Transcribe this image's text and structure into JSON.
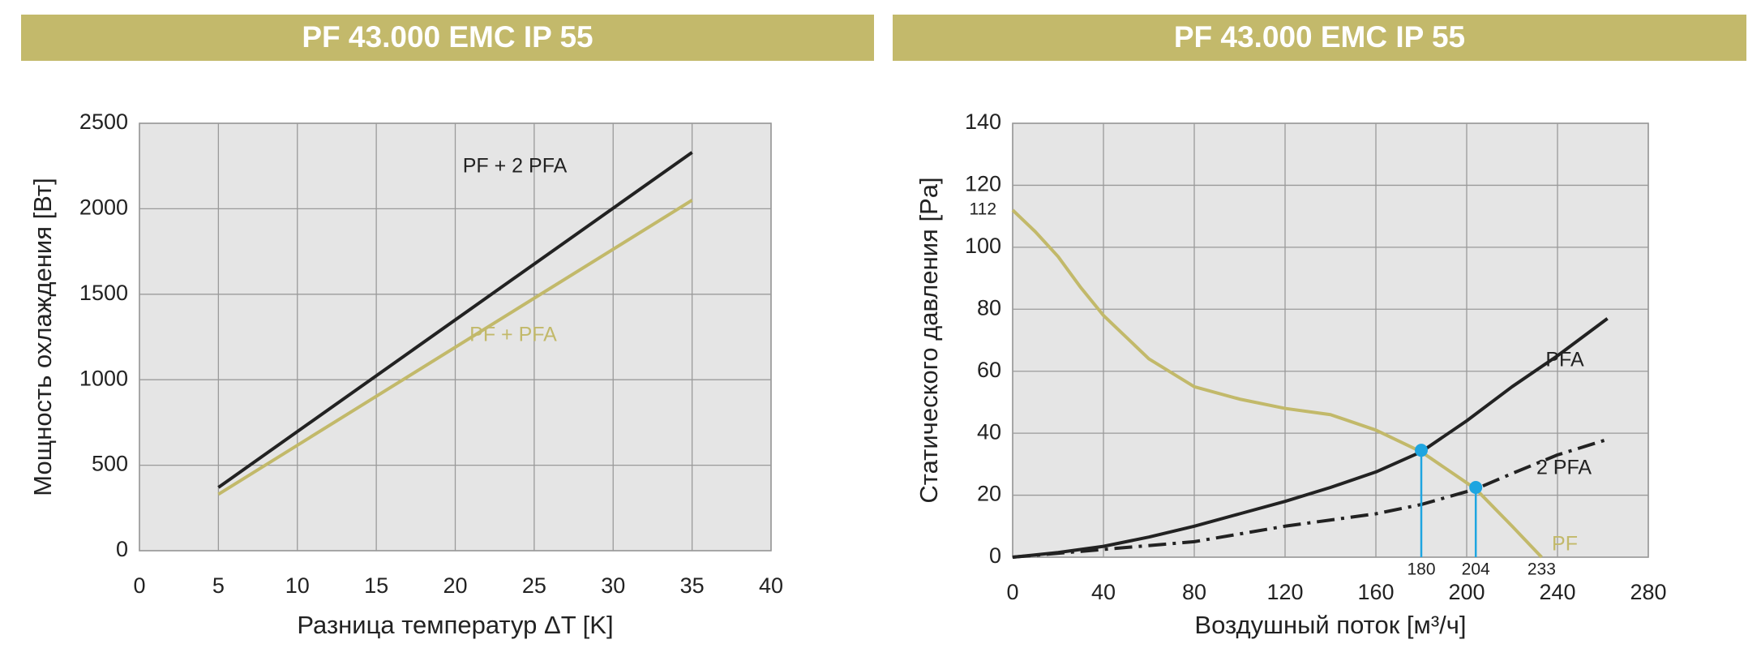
{
  "chart_data": [
    {
      "type": "line",
      "title": "PF 43.000 EMC IP 55",
      "x_label": "Разница температур ΔT [K]",
      "y_label": "Мощность охлаждения [Вт]",
      "xlim": [
        0,
        40
      ],
      "xticks": [
        0,
        5,
        10,
        15,
        20,
        25,
        30,
        35,
        40
      ],
      "ylim": [
        0,
        2500
      ],
      "yticks": [
        0,
        500,
        1000,
        1500,
        2000,
        2500
      ],
      "grid": true,
      "series": [
        {
          "name": "PF + 2 PFA",
          "color": "#222222",
          "x": [
            5,
            35
          ],
          "values": [
            370,
            2330
          ]
        },
        {
          "name": "PF + PFA",
          "color": "#c2b96a",
          "x": [
            5,
            35
          ],
          "values": [
            330,
            2050
          ]
        }
      ]
    },
    {
      "type": "line",
      "title": "PF 43.000 EMC IP 55",
      "x_label": "Воздушный поток [м³/ч]",
      "y_label": "Статического давления [Pa]",
      "xlim": [
        0,
        280
      ],
      "xticks": [
        0,
        40,
        80,
        120,
        160,
        200,
        240,
        280
      ],
      "ylim": [
        0,
        140
      ],
      "yticks": [
        0,
        20,
        40,
        60,
        80,
        100,
        120,
        140
      ],
      "grid": true,
      "x_annotations": [
        180,
        204,
        233
      ],
      "y_annotations": [
        112
      ],
      "points": [
        {
          "x": 180,
          "y": 34.5,
          "color": "#1ea5e0"
        },
        {
          "x": 204,
          "y": 22.5,
          "color": "#1ea5e0"
        }
      ],
      "series": [
        {
          "name": "PFA",
          "color": "#222222",
          "style": "solid",
          "x": [
            0,
            20,
            40,
            60,
            80,
            100,
            120,
            140,
            160,
            180,
            200,
            220,
            240,
            262
          ],
          "values": [
            0,
            1.5,
            3.5,
            6.5,
            10,
            14,
            18,
            22.5,
            27.5,
            34,
            44,
            55,
            65,
            77
          ]
        },
        {
          "name": "2 PFA",
          "color": "#222222",
          "style": "dashdot",
          "x": [
            0,
            40,
            80,
            120,
            160,
            180,
            204,
            220,
            240,
            262
          ],
          "values": [
            0,
            2.5,
            5,
            10,
            14,
            17,
            22,
            27,
            33,
            38
          ]
        },
        {
          "name": "PF",
          "color": "#c2b96a",
          "style": "solid",
          "x": [
            0,
            10,
            20,
            30,
            40,
            60,
            80,
            100,
            120,
            140,
            160,
            180,
            200,
            204,
            220,
            233
          ],
          "values": [
            112,
            105,
            97,
            87,
            78,
            64,
            55,
            51,
            48,
            46,
            41,
            34,
            24,
            22,
            10,
            0
          ]
        }
      ]
    }
  ]
}
